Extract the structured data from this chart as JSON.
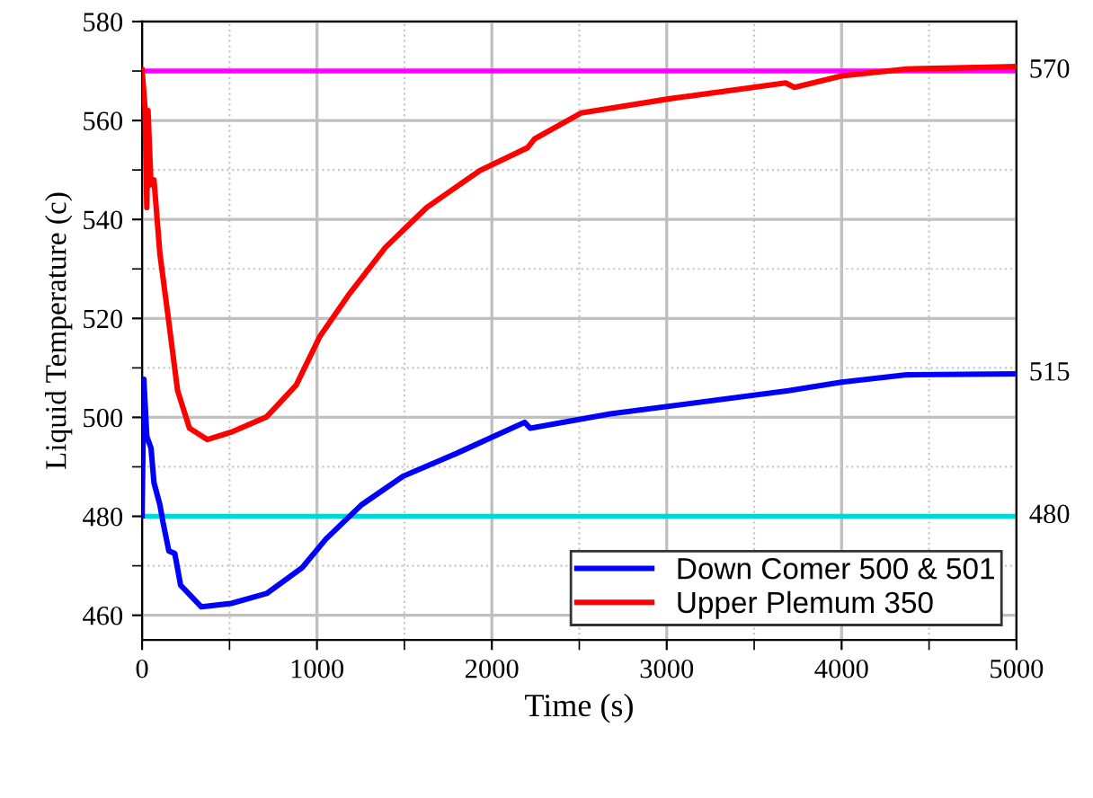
{
  "chart_data": {
    "type": "line",
    "xlabel": "Time (s)",
    "ylabel": "Liquid Temperature (c)",
    "xlim": [
      0,
      5000
    ],
    "xticks": [
      0,
      1000,
      2000,
      3000,
      4000,
      5000
    ],
    "ylim": [
      455,
      580
    ],
    "yticks": [
      460,
      480,
      500,
      520,
      540,
      560,
      580
    ],
    "grid": true,
    "legend": "bottom right",
    "marker": "none",
    "line_style": "solid",
    "series": [
      {
        "name": "Down Comer 500 & 501",
        "color": "#0000ff",
        "x": [
          0,
          10,
          27,
          51,
          68,
          102,
          119,
          153,
          187,
          220,
          339,
          509,
          712,
          915,
          1051,
          1254,
          1492,
          1797,
          2187,
          2220,
          2678,
          3696,
          4000,
          4373,
          5000
        ],
        "values": [
          480.1,
          507.7,
          496.1,
          493.8,
          486.8,
          482.3,
          478.9,
          473,
          472.5,
          466.1,
          461.7,
          462.4,
          464.4,
          469.6,
          475.4,
          482.3,
          488.1,
          492.7,
          499,
          497.8,
          500.7,
          505.4,
          507.1,
          508.6,
          508.8
        ]
      },
      {
        "name": "Upper Plemum 350",
        "color": "#ff0000",
        "x": [
          0,
          17,
          27,
          34,
          51,
          68,
          102,
          153,
          203,
          271,
          373,
          509,
          712,
          881,
          1017,
          1186,
          1390,
          1627,
          1932,
          2204,
          2245,
          2509,
          3017,
          3680,
          3730,
          4000,
          4373,
          5000
        ],
        "values": [
          570.2,
          562.6,
          542.4,
          562,
          547,
          548,
          533,
          519.2,
          505.4,
          497.8,
          495.5,
          497,
          500.1,
          506.5,
          516.4,
          525,
          534.3,
          542.4,
          549.9,
          554.5,
          556.3,
          561.5,
          564.4,
          567.6,
          566.7,
          569,
          570.4,
          570.9
        ]
      }
    ],
    "ref_lines": [
      {
        "axis": "y",
        "value": 570,
        "label": "570",
        "color": "#ff00ff"
      },
      {
        "axis": "y",
        "value": 480,
        "label": "480",
        "color": "#00d8d8"
      }
    ],
    "annotations": [
      {
        "text": "515",
        "x": 5000,
        "y": 508.8
      }
    ]
  }
}
